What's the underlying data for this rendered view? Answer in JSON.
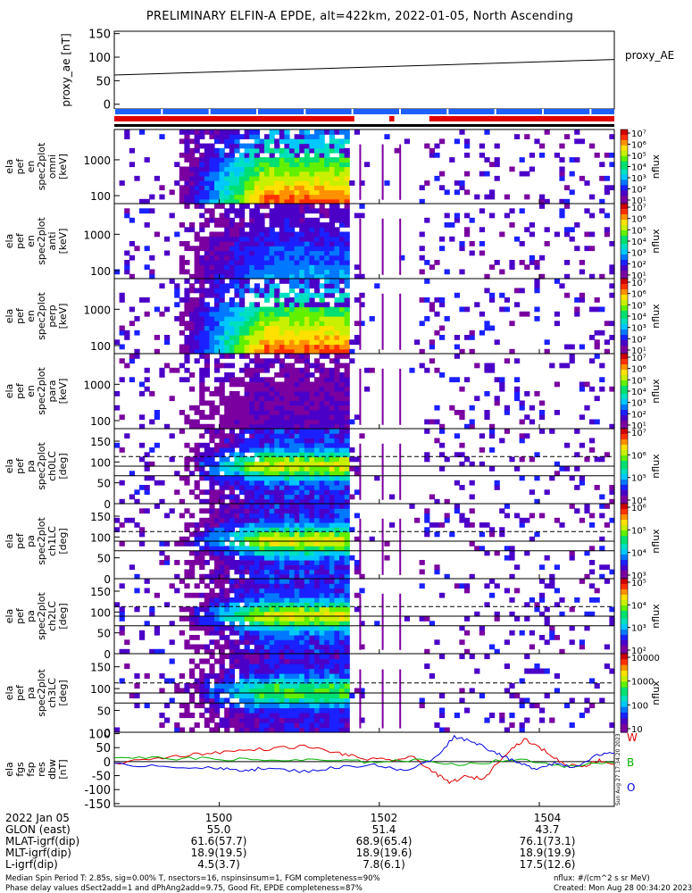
{
  "title": "PRELIMINARY ELFIN-A EPDE, alt=422km, 2022-01-05, North Ascending",
  "colors": {
    "above": "#e00000",
    "below": "#1e60ff",
    "trace": "#000000"
  },
  "bars": {
    "blue_segments": [
      [
        0.0,
        1.0
      ]
    ],
    "red_segments": [
      [
        0.0,
        0.48
      ],
      [
        0.55,
        0.56
      ],
      [
        0.63,
        1.0
      ]
    ]
  },
  "chart_data": [
    {
      "type": "line",
      "name": "proxy_ae",
      "ylabel": "proxy_ae [nT]",
      "ylim": [
        -10,
        155
      ],
      "yticks": [
        "150",
        "100",
        "50",
        "0"
      ],
      "ytick_values": [
        150,
        100,
        50,
        0
      ],
      "right_label": "proxy_AE",
      "series": [
        {
          "name": "proxy_AE",
          "x": [
            0.0,
            1.0
          ],
          "values": [
            62,
            95
          ]
        }
      ]
    },
    {
      "type": "heatmap",
      "ylabel_lines": [
        "ela",
        "pef",
        "en",
        "spec2plot",
        "omni",
        "[keV]"
      ],
      "yticks": [
        "1000",
        "100"
      ],
      "ytick_values": [
        1000,
        100
      ],
      "ylim": [
        60,
        7000
      ],
      "colorbar": {
        "labels": [
          "10⁷",
          "10⁶",
          "10⁵",
          "10⁴",
          "10³",
          "10²",
          "10¹"
        ],
        "unit": "nflux"
      },
      "fill_level": 0.95
    },
    {
      "type": "heatmap",
      "ylabel_lines": [
        "ela",
        "pef",
        "en",
        "spec2plot",
        "anti",
        "[keV]"
      ],
      "yticks": [
        "1000",
        "100"
      ],
      "ytick_values": [
        1000,
        100
      ],
      "ylim": [
        60,
        7000
      ],
      "colorbar": {
        "labels": [
          "10⁷",
          "10⁶",
          "10⁵",
          "10⁴",
          "10³",
          "10²",
          "10¹"
        ],
        "unit": "nflux"
      },
      "fill_level": 0.35
    },
    {
      "type": "heatmap",
      "ylabel_lines": [
        "ela",
        "pef",
        "en",
        "spec2plot",
        "perp",
        "[keV]"
      ],
      "yticks": [
        "1000",
        "100"
      ],
      "ytick_values": [
        1000,
        100
      ],
      "ylim": [
        60,
        7000
      ],
      "colorbar": {
        "labels": [
          "10⁷",
          "10⁶",
          "10⁵",
          "10⁴",
          "10³",
          "10²",
          "10¹"
        ],
        "unit": "nflux"
      },
      "fill_level": 0.95
    },
    {
      "type": "heatmap",
      "ylabel_lines": [
        "ela",
        "pef",
        "en",
        "spec2plot",
        "para",
        "[keV]"
      ],
      "yticks": [
        "1000",
        "100"
      ],
      "ytick_values": [
        1000,
        100
      ],
      "ylim": [
        60,
        7000
      ],
      "colorbar": {
        "labels": [
          "10⁷",
          "10⁶",
          "10⁵",
          "10⁴",
          "10³",
          "10²",
          "10¹"
        ],
        "unit": "nflux"
      },
      "fill_level": 0.15
    },
    {
      "type": "heatmap",
      "ylabel_lines": [
        "ela",
        "pef",
        "pa",
        "spec2plot",
        "ch0LC",
        "[deg]"
      ],
      "yticks": [
        "150",
        "100",
        "50",
        "0"
      ],
      "ytick_values": [
        150,
        100,
        50,
        0
      ],
      "ylim": [
        0,
        180
      ],
      "colorbar": {
        "labels": [
          "10⁷",
          "10⁶",
          "10⁵",
          "10⁴"
        ],
        "unit": "nflux"
      },
      "fill_level": 0.85,
      "lc_lines": [
        67,
        113
      ]
    },
    {
      "type": "heatmap",
      "ylabel_lines": [
        "ela",
        "pef",
        "pa",
        "spec2plot",
        "ch1LC",
        "[deg]"
      ],
      "yticks": [
        "150",
        "100",
        "50",
        "0"
      ],
      "ytick_values": [
        150,
        100,
        50,
        0
      ],
      "ylim": [
        0,
        180
      ],
      "colorbar": {
        "labels": [
          "10⁶",
          "10⁵",
          "10⁴",
          "10³"
        ],
        "unit": "nflux"
      },
      "fill_level": 0.85,
      "lc_lines": [
        67,
        113
      ]
    },
    {
      "type": "heatmap",
      "ylabel_lines": [
        "ela",
        "pef",
        "pa",
        "spec2plot",
        "ch2LC",
        "[deg]"
      ],
      "yticks": [
        "150",
        "100",
        "50",
        "0"
      ],
      "ytick_values": [
        150,
        100,
        50,
        0
      ],
      "ylim": [
        0,
        180
      ],
      "colorbar": {
        "labels": [
          "10⁵",
          "10⁴",
          "10³",
          "10²"
        ],
        "unit": "nflux"
      },
      "fill_level": 0.85,
      "lc_lines": [
        67,
        113
      ]
    },
    {
      "type": "heatmap",
      "ylabel_lines": [
        "ela",
        "pef",
        "pa",
        "spec2plot",
        "ch3LC",
        "[deg]"
      ],
      "yticks": [
        "150",
        "100",
        "50",
        "0"
      ],
      "ytick_values": [
        150,
        100,
        50,
        0
      ],
      "ylim": [
        0,
        180
      ],
      "colorbar": {
        "labels": [
          "10000",
          "1000",
          "100",
          "10"
        ],
        "unit": "nflux"
      },
      "fill_level": 0.7,
      "lc_lines": [
        67,
        113
      ]
    },
    {
      "type": "line",
      "ylabel_lines": [
        "ela",
        "fgs",
        "fsp",
        "res",
        "dbw",
        "[nT]"
      ],
      "yticks": [
        "100",
        "50",
        "0",
        "-50",
        "-100",
        "-150"
      ],
      "ytick_values": [
        100,
        50,
        0,
        -50,
        -100,
        -150
      ],
      "ylim": [
        -160,
        105
      ],
      "series": [
        {
          "name": "W",
          "color": "#e00000",
          "x": [
            0.0,
            0.08,
            0.15,
            0.22,
            0.3,
            0.38,
            0.45,
            0.5,
            0.55,
            0.6,
            0.64,
            0.67,
            0.7,
            0.74,
            0.78,
            0.82,
            0.86,
            0.9,
            0.94,
            0.97,
            1.0
          ],
          "values": [
            -5,
            10,
            25,
            35,
            45,
            55,
            30,
            10,
            5,
            15,
            -40,
            -75,
            -55,
            -60,
            25,
            80,
            40,
            -10,
            -15,
            5,
            -10
          ]
        },
        {
          "name": "B",
          "color": "#00b000",
          "x": [
            0.0,
            0.1,
            0.2,
            0.3,
            0.4,
            0.5,
            0.6,
            0.7,
            0.8,
            0.9,
            1.0
          ],
          "values": [
            15,
            12,
            10,
            5,
            5,
            0,
            5,
            -10,
            8,
            -15,
            -5
          ]
        },
        {
          "name": "O",
          "color": "#0000e0",
          "x": [
            0.0,
            0.1,
            0.2,
            0.25,
            0.3,
            0.38,
            0.45,
            0.52,
            0.58,
            0.64,
            0.68,
            0.72,
            0.76,
            0.8,
            0.84,
            0.88,
            0.92,
            0.96,
            1.0
          ],
          "values": [
            -10,
            -15,
            -25,
            -30,
            -25,
            -35,
            -20,
            -10,
            -35,
            10,
            90,
            70,
            35,
            0,
            -25,
            -5,
            -20,
            20,
            30
          ]
        }
      ],
      "legend": [
        "W",
        "B",
        "O"
      ]
    }
  ],
  "x_axis": {
    "tick_labels": [
      "1500",
      "1502",
      "1504"
    ],
    "tick_positions": [
      0.21,
      0.53,
      0.85
    ]
  },
  "info_rows": [
    {
      "label": "2022 Jan 05",
      "values": [
        "1500",
        "1502",
        "1504"
      ]
    },
    {
      "label": "GLON (east)",
      "values": [
        "55.0",
        "51.4",
        "43.7"
      ]
    },
    {
      "label": "MLAT-igrf(dip)",
      "values": [
        "61.6(57.7)",
        "68.9(65.4)",
        "76.1(73.1)"
      ]
    },
    {
      "label": "MLT-igrf(dip)",
      "values": [
        "18.9(19.5)",
        "18.9(19.6)",
        "18.9(19.9)"
      ]
    },
    {
      "label": "L-igrf(dip)",
      "values": [
        "4.5(3.7)",
        "7.8(6.1)",
        "17.5(12.6)"
      ]
    }
  ],
  "footer": {
    "left1": "Median Spin Period T: 2.85s, sig=0.00% T, nsectors=16, nspinsinsum=1, FGM completeness=90%",
    "left2": "Phase delay values dSect2add=1 and dPhAng2add=9.75, Good Fit, EPDE completeness=87%",
    "right1": "nflux: #/(cm^2 s sr MeV)",
    "right2": "Created: Mon Aug 28 00:34:20 2023"
  },
  "side_stamp": "Sun Aug 27 17:34:20 2023"
}
